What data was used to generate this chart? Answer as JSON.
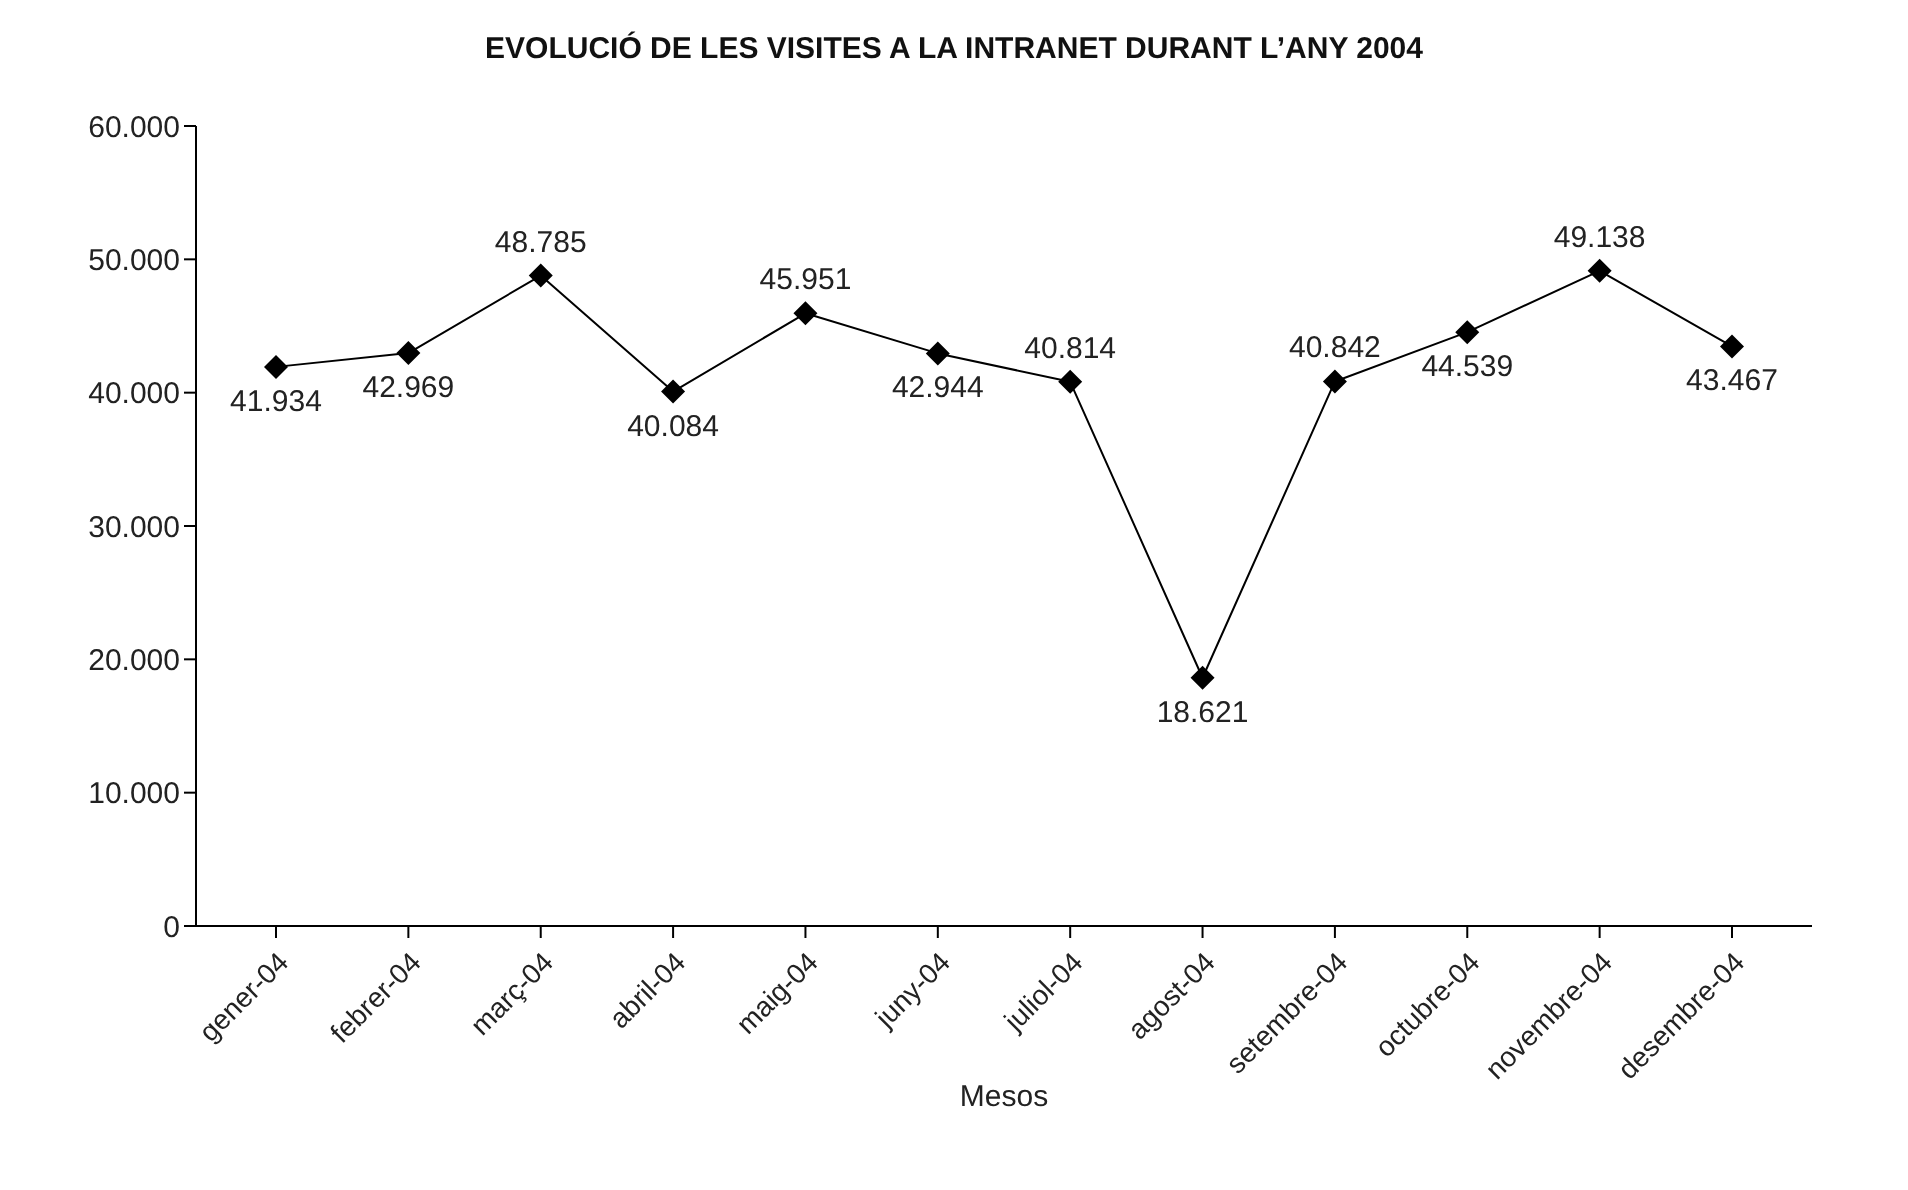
{
  "chart_data": {
    "type": "line",
    "title": "EVOLUCIÓ DE LES VISITES A LA INTRANET DURANT L’ANY 2004",
    "xlabel": "Mesos",
    "categories": [
      "gener-04",
      "febrer-04",
      "març-04",
      "abril-04",
      "maig-04",
      "juny-04",
      "juliol-04",
      "agost-04",
      "setembre-04",
      "octubre-04",
      "novembre-04",
      "desembre-04"
    ],
    "series": [
      {
        "color": "#000000",
        "values": [
          41934,
          42969,
          48785,
          40084,
          45951,
          42944,
          40814,
          18621,
          40842,
          44539,
          49138,
          43467
        ],
        "value_labels": [
          "41.934",
          "42.969",
          "48.785",
          "40.084",
          "45.951",
          "42.944",
          "40.814",
          "18.621",
          "40.842",
          "44.539",
          "49.138",
          "43.467"
        ]
      }
    ],
    "ylim": [
      0,
      60000
    ],
    "yticks": [
      {
        "value": 0,
        "label": "0"
      },
      {
        "value": 10000,
        "label": "10.000"
      },
      {
        "value": 20000,
        "label": "20.000"
      },
      {
        "value": 30000,
        "label": "30.000"
      },
      {
        "value": 40000,
        "label": "40.000"
      },
      {
        "value": 50000,
        "label": "50.000"
      },
      {
        "value": 60000,
        "label": "60.000"
      }
    ],
    "grid": false,
    "legend": false,
    "marker": "diamond",
    "line_style": "solid"
  }
}
